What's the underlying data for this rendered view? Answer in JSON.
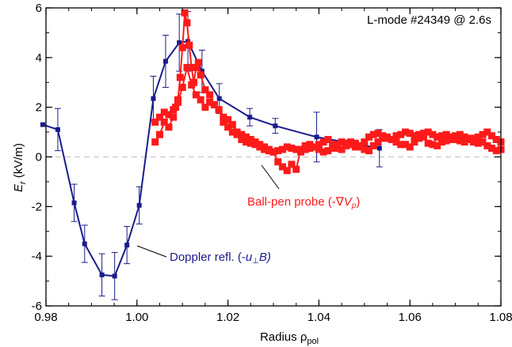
{
  "chart_data": {
    "type": "scatter",
    "annotation_top_right": "L-mode #24349 @ 2.6s",
    "xlabel": {
      "main": "Radius ",
      "symbol": "ρ",
      "sub": "pol"
    },
    "ylabel": {
      "main": "E",
      "sub": "r",
      "unit": " (kV/m)"
    },
    "xlim": [
      0.98,
      1.08
    ],
    "ylim": [
      -6,
      6
    ],
    "x_ticks": [
      0.98,
      1.0,
      1.02,
      1.04,
      1.06,
      1.08
    ],
    "x_tick_labels": [
      "0.98",
      "1.00",
      "1.02",
      "1.04",
      "1.06",
      "1.08"
    ],
    "y_ticks": [
      -6,
      -4,
      -2,
      0,
      2,
      4,
      6
    ],
    "y_tick_labels": [
      "-6",
      "-4",
      "-2",
      "0",
      "2",
      "4",
      "6"
    ],
    "zero_line": true,
    "series": [
      {
        "name": "Doppler refl.",
        "label_text": "Doppler refl. (-u⊥B)",
        "label_parts": {
          "pre": "Doppler refl. (-",
          "var": "u",
          "op": "⊥",
          "post": "B)"
        },
        "color": "#1b1b8c",
        "marker": "small-square",
        "x": [
          0.9793,
          0.9826,
          0.9862,
          0.9885,
          0.9923,
          0.9951,
          0.9978,
          1.0005,
          1.0036,
          1.0063,
          1.0093,
          1.0112,
          1.0143,
          1.0181,
          1.0248,
          1.0304,
          1.0395,
          1.0533
        ],
        "y": [
          1.3,
          1.1,
          -1.85,
          -3.5,
          -4.75,
          -4.8,
          -3.55,
          -1.95,
          2.35,
          3.85,
          4.6,
          4.65,
          3.45,
          2.35,
          1.6,
          1.25,
          0.8,
          0.35
        ],
        "err": [
          0,
          0.85,
          0.75,
          0.75,
          0.85,
          0.95,
          0.75,
          0.75,
          0.9,
          1.05,
          1.15,
          1.2,
          0.85,
          0.6,
          0.35,
          0.3,
          1.0,
          0.75
        ],
        "connected": true
      },
      {
        "name": "Ball-pen probe",
        "label_text": "Ball-pen probe (-∇Vp)",
        "label_parts": {
          "pre": "Ball-pen probe (-∇",
          "var": "V",
          "sub": "p",
          "post": ")"
        },
        "color": "#ff1a1a",
        "marker": "square",
        "x": [
          1.004,
          1.005,
          1.006,
          1.007,
          1.008,
          1.009,
          1.0095,
          1.01,
          1.0105,
          1.011,
          1.0115,
          1.012,
          1.0125,
          1.013,
          1.0135,
          1.014,
          1.015,
          1.016,
          1.017,
          1.018,
          1.019,
          1.02,
          1.021,
          1.022,
          1.023,
          1.024,
          1.025,
          1.026,
          1.027,
          1.028,
          1.029,
          1.03,
          1.031,
          1.032,
          1.033,
          1.034,
          1.035,
          1.036,
          1.037,
          1.038,
          1.039,
          1.04,
          1.041,
          1.042,
          1.043,
          1.044,
          1.045,
          1.046,
          1.047,
          1.048,
          1.049,
          1.05,
          1.051,
          1.052,
          1.053,
          1.054,
          1.055,
          1.056,
          1.057,
          1.058,
          1.059,
          1.06,
          1.061,
          1.062,
          1.063,
          1.064,
          1.065,
          1.066,
          1.067,
          1.068,
          1.069,
          1.07,
          1.071,
          1.072,
          1.073,
          1.074,
          1.075,
          1.076,
          1.077,
          1.078,
          1.079,
          1.08
        ],
        "y": [
          0.6,
          0.9,
          1.4,
          1.2,
          1.6,
          2.3,
          3.2,
          4.4,
          5.8,
          5.4,
          4.5,
          3.6,
          3.0,
          3.6,
          3.8,
          3.3,
          2.7,
          2.5,
          2.1,
          1.9,
          1.6,
          1.5,
          1.3,
          1.0,
          0.9,
          0.8,
          0.7,
          0.6,
          0.5,
          0.4,
          0.3,
          0.2,
          -0.2,
          -0.4,
          -0.55,
          -0.3,
          -0.5,
          0.3,
          0.45,
          0.5,
          0.4,
          0.5,
          0.6,
          0.7,
          0.5,
          0.35,
          0.3,
          0.45,
          0.6,
          0.55,
          0.4,
          0.3,
          0.25,
          0.45,
          0.6,
          0.75,
          0.8,
          0.7,
          0.6,
          0.5,
          0.5,
          0.4,
          0.6,
          0.75,
          0.8,
          0.55,
          0.5,
          0.45,
          0.6,
          0.65,
          0.7,
          0.85,
          0.9,
          0.8,
          0.75,
          0.6,
          0.55,
          0.6,
          0.45,
          0.35,
          0.25,
          0.3
        ],
        "x2": [
          1.004,
          1.005,
          1.006,
          1.007,
          1.008,
          1.0085,
          1.009,
          1.01,
          1.011,
          1.012,
          1.013,
          1.014,
          1.015,
          1.016,
          1.017,
          1.018,
          1.019,
          1.02,
          1.021,
          1.022,
          1.023,
          1.024,
          1.025,
          1.026,
          1.027,
          1.028,
          1.029,
          1.03,
          1.031,
          1.032,
          1.033,
          1.034,
          1.035,
          1.036,
          1.037,
          1.038,
          1.039,
          1.04,
          1.041,
          1.042,
          1.043,
          1.044,
          1.045,
          1.046,
          1.047,
          1.048,
          1.049,
          1.05,
          1.051,
          1.052,
          1.053,
          1.054,
          1.055,
          1.056,
          1.057,
          1.058,
          1.059,
          1.06,
          1.061,
          1.062,
          1.063,
          1.064,
          1.065,
          1.066,
          1.067,
          1.068,
          1.069,
          1.07,
          1.071,
          1.072,
          1.073,
          1.074,
          1.075,
          1.076,
          1.077,
          1.078,
          1.079,
          1.08
        ],
        "y2": [
          1.4,
          1.6,
          1.8,
          1.7,
          1.9,
          2.0,
          2.2,
          2.8,
          3.6,
          2.9,
          2.5,
          2.3,
          2.0,
          2.2,
          2.1,
          1.9,
          1.4,
          1.2,
          1.0,
          0.9,
          0.7,
          0.6,
          0.55,
          0.5,
          0.4,
          0.3,
          0.25,
          0.2,
          0.25,
          0.3,
          0.4,
          0.35,
          0.3,
          0.2,
          0.3,
          0.35,
          0.4,
          0.3,
          0.2,
          0.25,
          0.35,
          0.5,
          0.6,
          0.55,
          0.5,
          0.4,
          0.45,
          0.6,
          0.8,
          0.9,
          0.95,
          0.85,
          0.75,
          0.7,
          0.85,
          0.9,
          1.0,
          0.95,
          0.85,
          0.9,
          0.95,
          1.0,
          0.9,
          0.8,
          0.85,
          0.9,
          0.8,
          0.7,
          0.65,
          0.6,
          0.7,
          0.75,
          0.8,
          0.9,
          1.0,
          0.85,
          0.7,
          0.6
        ],
        "connected": true
      }
    ],
    "legend": "inline-labels",
    "grid": false
  }
}
